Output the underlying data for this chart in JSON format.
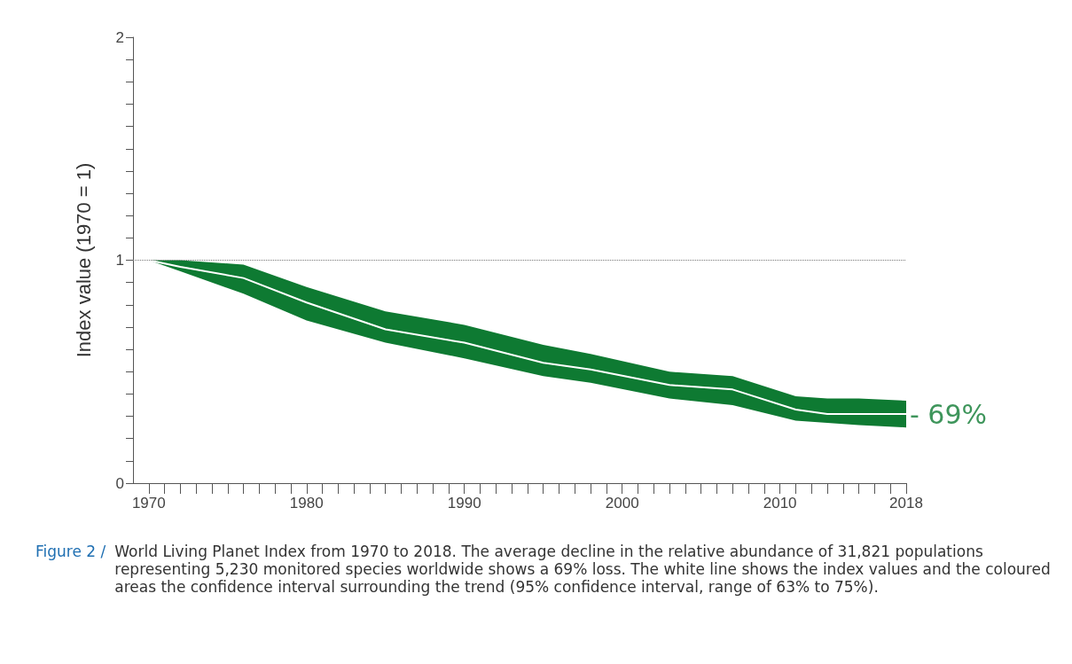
{
  "chart_data": {
    "type": "line",
    "title": "Figure 2 /",
    "subtitle": "World Living Planet Index from 1970 to 2018. The average decline in the relative abundance of 31,821 populations representing 5,230 monitored species worldwide shows a 69% loss. The white line shows the index values and the coloured areas the confidence interval surrounding the trend (95% confidence interval, range of 63% to 75%).",
    "ylabel": "Index value (1970 = 1)",
    "series": [
      {
        "color": "#ffffff",
        "x": [
          1970,
          1972,
          1976,
          1980,
          1985,
          1990,
          1995,
          1998,
          2003,
          2007,
          2011,
          2013,
          2015,
          2018
        ],
        "values": [
          1,
          0.97,
          0.92,
          0.81,
          0.69,
          0.63,
          0.54,
          0.51,
          0.44,
          0.42,
          0.33,
          0.31,
          0.31,
          0.31
        ],
        "upper": [
          1,
          1.0,
          0.98,
          0.88,
          0.77,
          0.71,
          0.62,
          0.58,
          0.5,
          0.48,
          0.39,
          0.38,
          0.38,
          0.37
        ],
        "lower": [
          1,
          0.95,
          0.85,
          0.73,
          0.63,
          0.56,
          0.48,
          0.45,
          0.38,
          0.35,
          0.28,
          0.27,
          0.26,
          0.25
        ]
      }
    ],
    "annotations": [
      {
        "text": "- 69%",
        "x": 2018,
        "y": 0.31
      }
    ],
    "ref_lines": [
      {
        "axis": "y",
        "value": 1,
        "color": "#777777",
        "line_style": "dotted"
      }
    ],
    "xlim": [
      1969,
      2018
    ],
    "xticks": [
      1970,
      {
        "value": 1971,
        "label": null
      },
      {
        "value": 1972,
        "label": null
      },
      {
        "value": 1973,
        "label": null
      },
      {
        "value": 1974,
        "label": null
      },
      {
        "value": 1975,
        "label": null
      },
      {
        "value": 1976,
        "label": null
      },
      {
        "value": 1977,
        "label": null
      },
      {
        "value": 1978,
        "label": null
      },
      {
        "value": 1979,
        "label": null
      },
      1980,
      {
        "value": 1981,
        "label": null
      },
      {
        "value": 1982,
        "label": null
      },
      {
        "value": 1983,
        "label": null
      },
      {
        "value": 1984,
        "label": null
      },
      {
        "value": 1985,
        "label": null
      },
      {
        "value": 1986,
        "label": null
      },
      {
        "value": 1987,
        "label": null
      },
      {
        "value": 1988,
        "label": null
      },
      {
        "value": 1989,
        "label": null
      },
      1990,
      {
        "value": 1991,
        "label": null
      },
      {
        "value": 1992,
        "label": null
      },
      {
        "value": 1993,
        "label": null
      },
      {
        "value": 1994,
        "label": null
      },
      {
        "value": 1995,
        "label": null
      },
      {
        "value": 1996,
        "label": null
      },
      {
        "value": 1997,
        "label": null
      },
      {
        "value": 1998,
        "label": null
      },
      {
        "value": 1999,
        "label": null
      },
      2000,
      {
        "value": 2001,
        "label": null
      },
      {
        "value": 2002,
        "label": null
      },
      {
        "value": 2003,
        "label": null
      },
      {
        "value": 2004,
        "label": null
      },
      {
        "value": 2005,
        "label": null
      },
      {
        "value": 2006,
        "label": null
      },
      {
        "value": 2007,
        "label": null
      },
      {
        "value": 2008,
        "label": null
      },
      {
        "value": 2009,
        "label": null
      },
      2010,
      {
        "value": 2011,
        "label": null
      },
      {
        "value": 2012,
        "label": null
      },
      {
        "value": 2013,
        "label": null
      },
      {
        "value": 2014,
        "label": null
      },
      {
        "value": 2015,
        "label": null
      },
      {
        "value": 2016,
        "label": null
      },
      {
        "value": 2017,
        "label": null
      },
      2018
    ],
    "ylim": [
      0,
      2
    ],
    "yticks": [
      0,
      {
        "value": 0.1,
        "label": null
      },
      {
        "value": 0.2,
        "label": null
      },
      {
        "value": 0.3,
        "label": null
      },
      {
        "value": 0.4,
        "label": null
      },
      {
        "value": 0.5,
        "label": null
      },
      {
        "value": 0.6,
        "label": null
      },
      {
        "value": 0.7,
        "label": null
      },
      {
        "value": 0.8,
        "label": null
      },
      {
        "value": 0.9,
        "label": null
      },
      1,
      {
        "value": 1.1,
        "label": null
      },
      {
        "value": 1.2,
        "label": null
      },
      {
        "value": 1.3,
        "label": null
      },
      {
        "value": 1.4,
        "label": null
      },
      {
        "value": 1.5,
        "label": null
      },
      {
        "value": 1.6,
        "label": null
      },
      {
        "value": 1.7,
        "label": null
      },
      {
        "value": 1.8,
        "label": null
      },
      {
        "value": 1.9,
        "label": null
      },
      2
    ],
    "grid": false,
    "marker": "none",
    "line_style": "solid"
  }
}
